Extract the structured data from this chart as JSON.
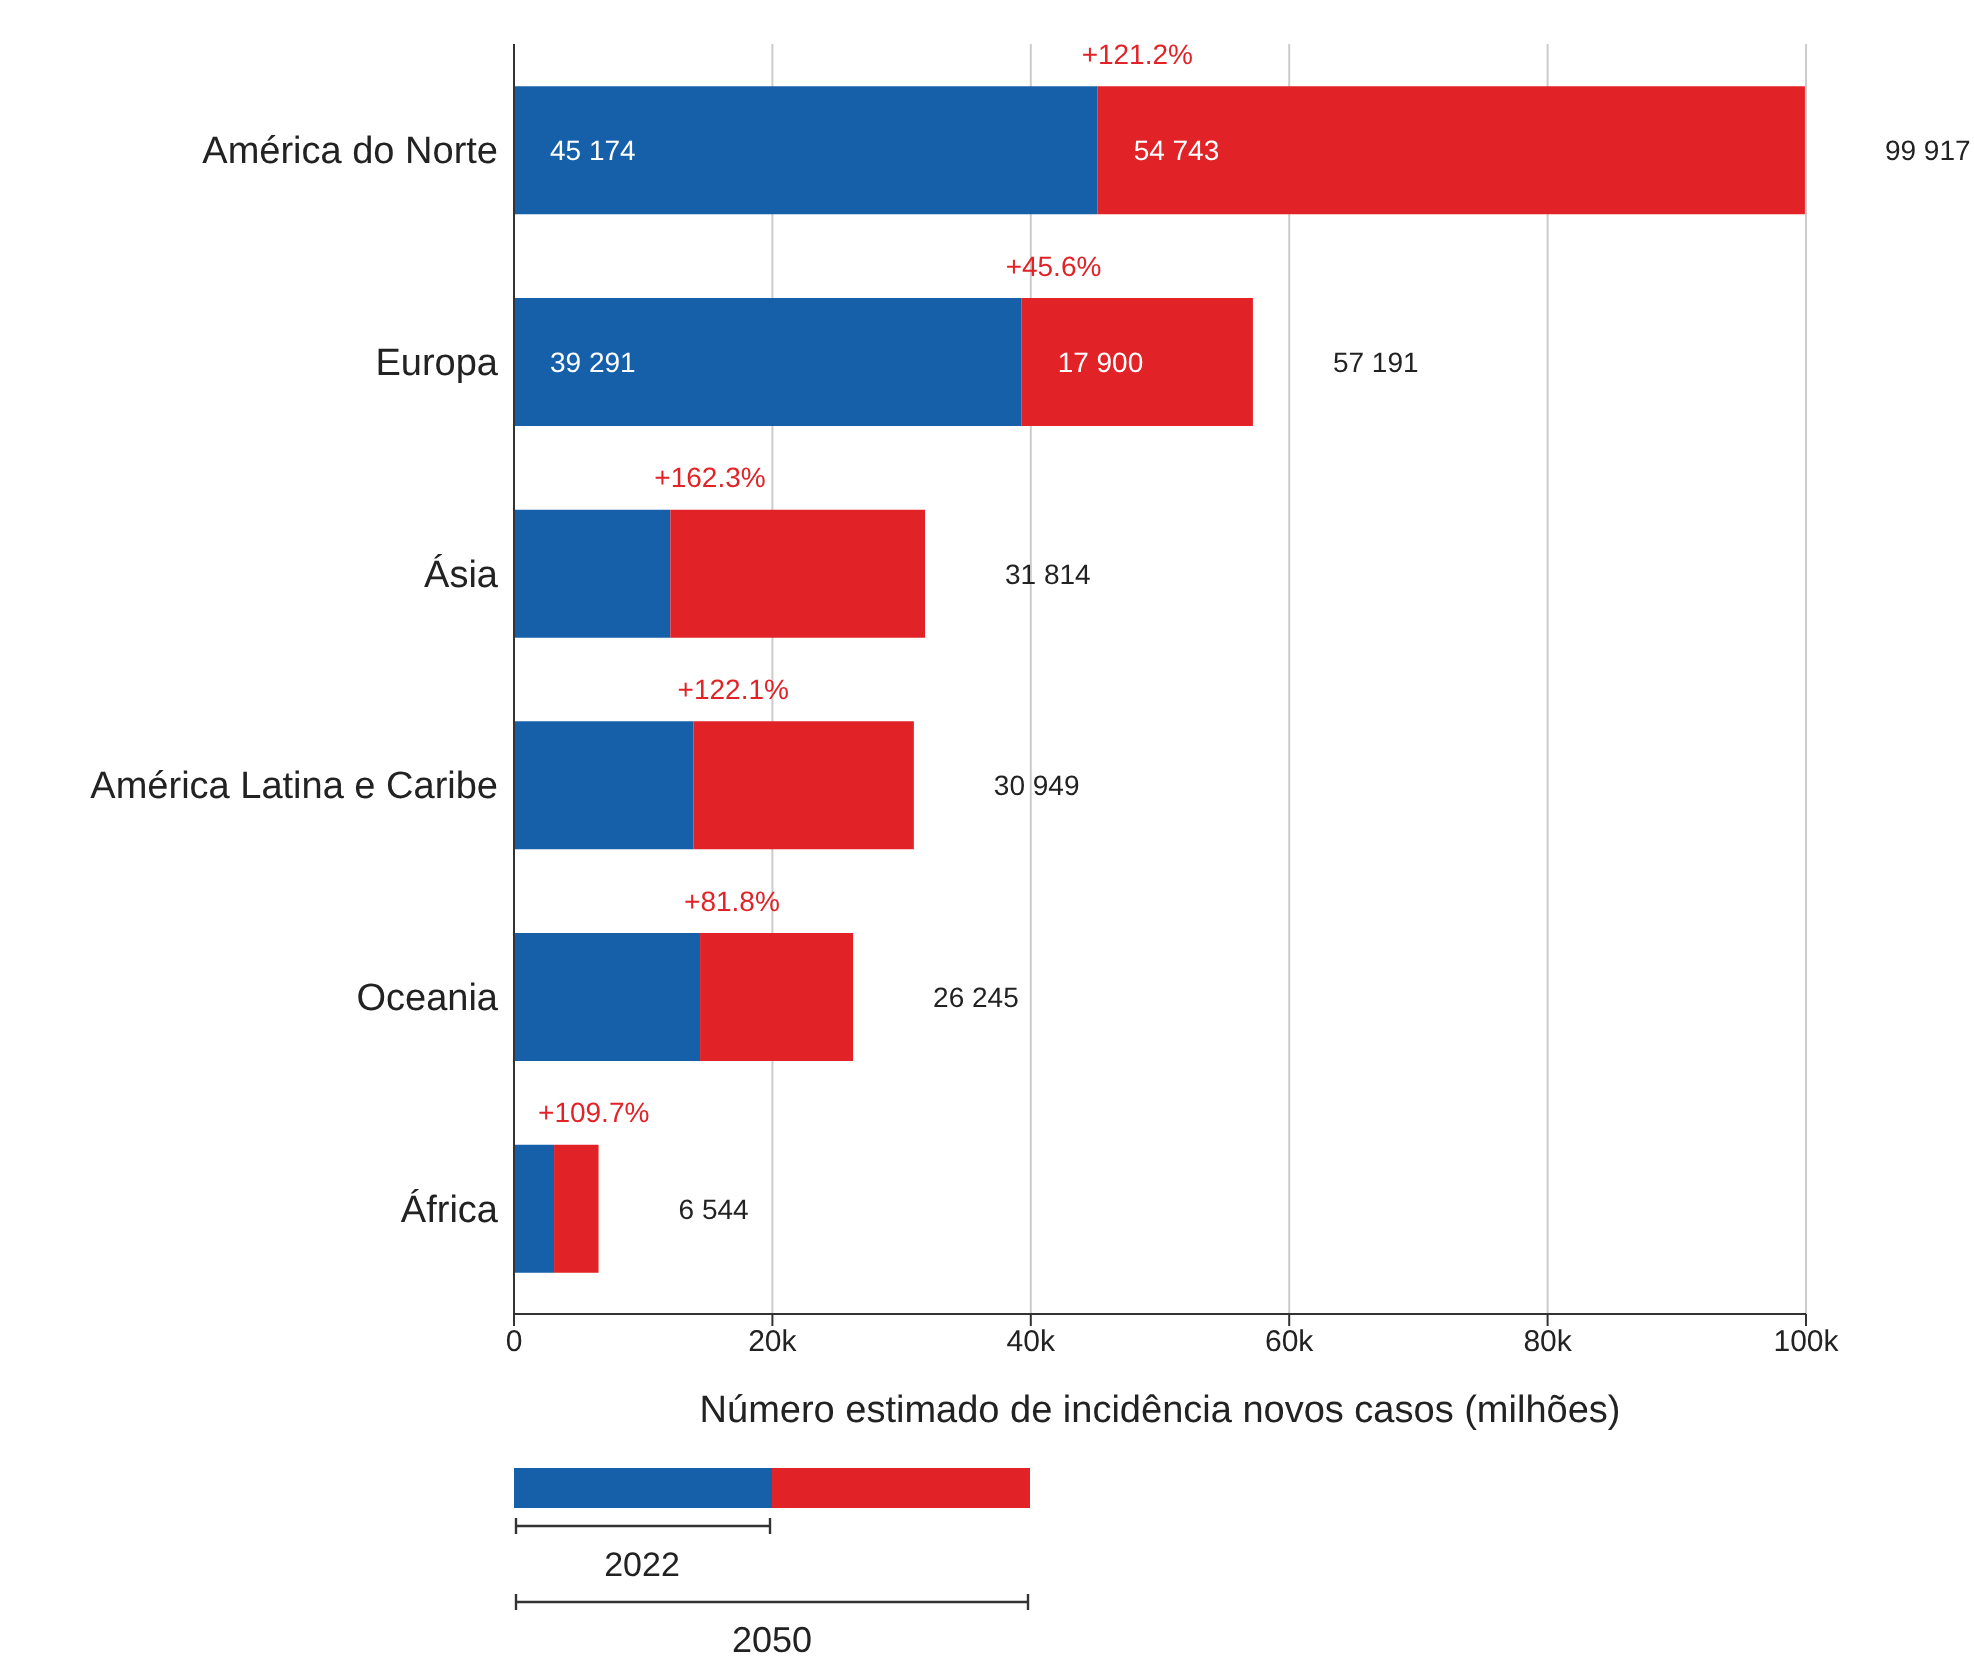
{
  "chart_data": {
    "type": "bar",
    "orientation": "horizontal",
    "stacked": true,
    "xlabel": "Número estimado de incidência novos casos (milhões)",
    "categories": [
      "América do Norte",
      "Europa",
      "Ásia",
      "América Latina e Caribe",
      "Oceania",
      "África"
    ],
    "series": [
      {
        "name": "2022",
        "color": "#1660aa",
        "values": [
          45174,
          39291,
          12100,
          13900,
          14400,
          3100
        ],
        "value_labels": [
          "45 174",
          "39 291",
          null,
          null,
          null,
          null
        ]
      },
      {
        "color": "#e12328",
        "values": [
          54743,
          17900,
          19714,
          17049,
          11845,
          3444
        ],
        "value_labels": [
          "54 743",
          "17 900",
          null,
          null,
          null,
          null
        ]
      }
    ],
    "totals": [
      "99 917",
      "57 191",
      "31 814",
      "30 949",
      "26 245",
      "6 544"
    ],
    "annotations": [
      {
        "text": "+121.2%",
        "x": 45174,
        "y": "América do Norte"
      },
      {
        "text": "+45.6%",
        "x": 39291,
        "y": "Europa"
      },
      {
        "text": "+162.3%",
        "x": 12100,
        "y": "Ásia"
      },
      {
        "text": "+122.1%",
        "x": 13900,
        "y": "América Latina e Caribe"
      },
      {
        "text": "+81.8%",
        "x": 14400,
        "y": "Oceania"
      },
      {
        "text": "+109.7%",
        "x": 3100,
        "y": "África"
      },
      "2050"
    ],
    "xlim": [
      0,
      100000
    ],
    "xticks": [
      0,
      {
        "value": 20000,
        "label": "20k"
      },
      {
        "value": 40000,
        "label": "40k"
      },
      {
        "value": 60000,
        "label": "60k"
      },
      {
        "value": 80000,
        "label": "80k"
      },
      {
        "value": 100000,
        "label": "100k"
      }
    ],
    "grid": "x",
    "legend": "bottom"
  }
}
